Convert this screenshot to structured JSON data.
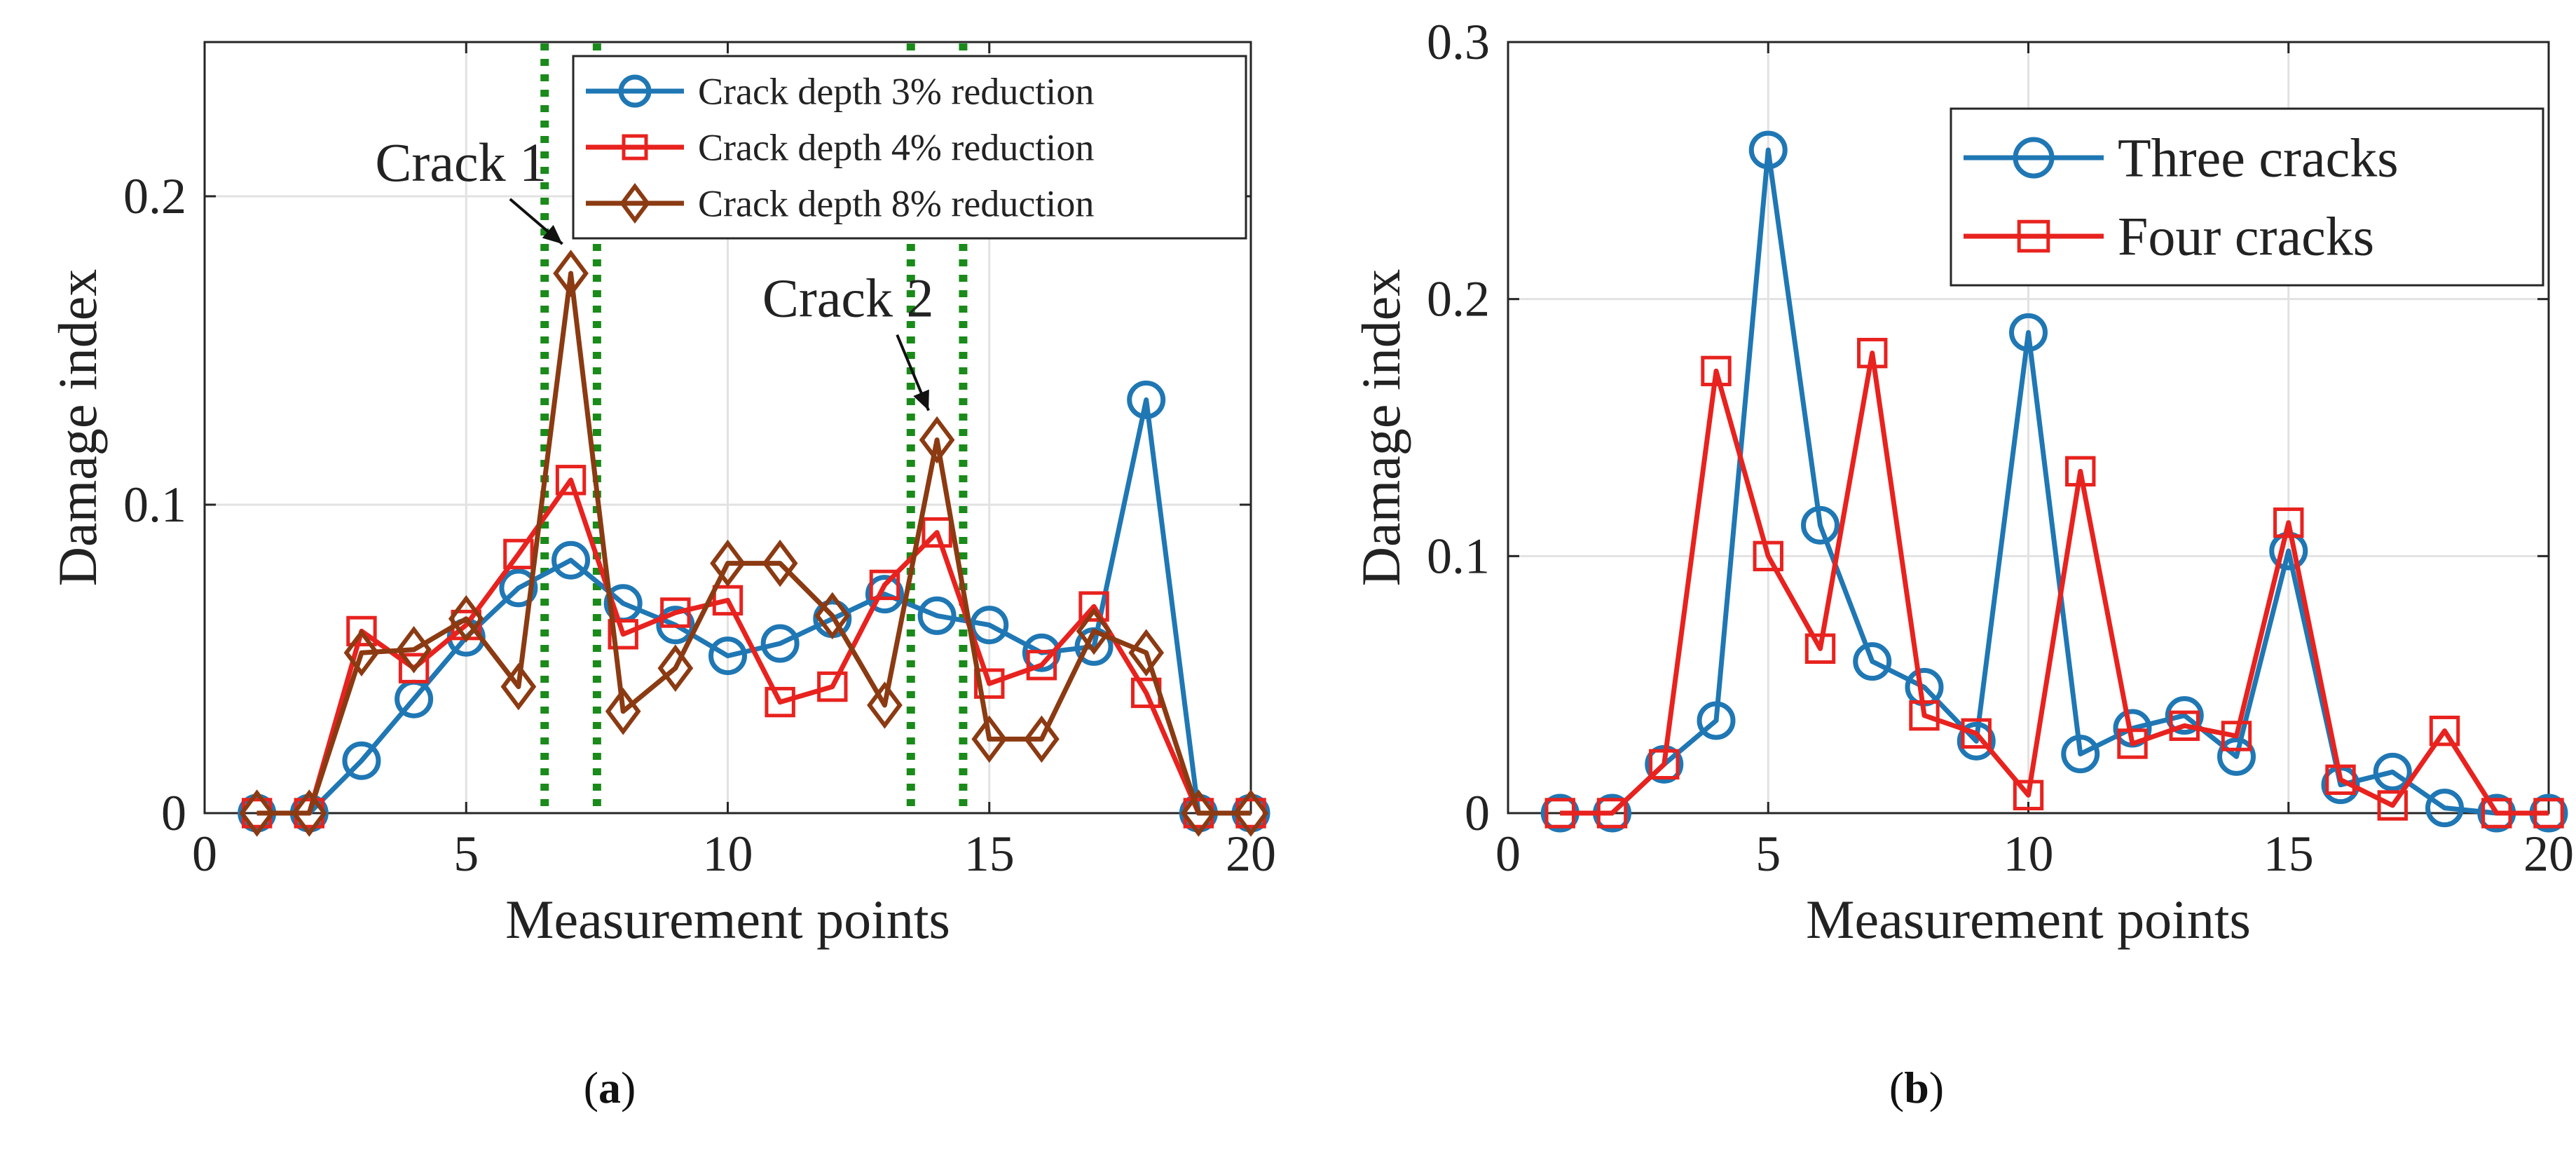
{
  "chart_data": [
    {
      "type": "line",
      "panel_label": "a",
      "xlabel": "Measurement points",
      "ylabel": "Damage index",
      "xlim": [
        0,
        20
      ],
      "ylim": [
        0,
        0.25
      ],
      "xticks": [
        0,
        5,
        10,
        15,
        20
      ],
      "yticks": [
        0,
        0.1,
        0.2
      ],
      "ytick_labels": [
        "0",
        "0.1",
        "0.2"
      ],
      "grid": true,
      "legend_position": "top-right",
      "x": [
        1,
        2,
        3,
        4,
        5,
        6,
        7,
        8,
        9,
        10,
        11,
        12,
        13,
        14,
        15,
        16,
        17,
        18,
        19,
        20
      ],
      "series": [
        {
          "name": "Crack depth 3% reduction",
          "color": "#1f77b4",
          "marker": "circle",
          "values": [
            0,
            0,
            0.017,
            0.037,
            0.057,
            0.073,
            0.082,
            0.068,
            0.061,
            0.051,
            0.055,
            0.063,
            0.071,
            0.064,
            0.061,
            0.052,
            0.054,
            0.134,
            0,
            0
          ]
        },
        {
          "name": "Crack depth 4% reduction",
          "color": "#e8221e",
          "marker": "square",
          "values": [
            0,
            0,
            0.059,
            0.047,
            0.061,
            0.084,
            0.108,
            0.058,
            0.065,
            0.069,
            0.036,
            0.041,
            0.074,
            0.091,
            0.042,
            0.048,
            0.067,
            0.039,
            0,
            0
          ]
        },
        {
          "name": "Crack depth 8% reduction",
          "color": "#8b3a12",
          "marker": "diamond",
          "values": [
            0,
            0,
            0.052,
            0.053,
            0.063,
            0.041,
            0.175,
            0.033,
            0.047,
            0.081,
            0.081,
            0.064,
            0.035,
            0.121,
            0.024,
            0.024,
            0.059,
            0.052,
            0,
            0
          ]
        }
      ],
      "vlines": [
        6.5,
        7.5,
        13.5,
        14.5
      ],
      "vline_color": "#1a8a1a",
      "annotations": [
        {
          "text": "Crack 1",
          "x": 7,
          "y": 0.175,
          "label_x": 4.9,
          "label_y": 0.205
        },
        {
          "text": "Crack 2",
          "x": 14,
          "y": 0.121,
          "label_x": 12.3,
          "label_y": 0.161
        }
      ]
    },
    {
      "type": "line",
      "panel_label": "b",
      "xlabel": "Measurement points",
      "ylabel": "Damage index",
      "xlim": [
        0,
        20
      ],
      "ylim": [
        0,
        0.3
      ],
      "xticks": [
        0,
        5,
        10,
        15,
        20
      ],
      "yticks": [
        0,
        0.1,
        0.2,
        0.3
      ],
      "ytick_labels": [
        "0",
        "0.1",
        "0.2",
        "0.3"
      ],
      "grid": true,
      "legend_position": "top-right",
      "x": [
        1,
        2,
        3,
        4,
        5,
        6,
        7,
        8,
        9,
        10,
        11,
        12,
        13,
        14,
        15,
        16,
        17,
        18,
        19,
        20
      ],
      "series": [
        {
          "name": "Three cracks",
          "color": "#1f77b4",
          "marker": "circle",
          "values": [
            0,
            0,
            0.019,
            0.036,
            0.258,
            0.112,
            0.059,
            0.049,
            0.028,
            0.187,
            0.023,
            0.033,
            0.038,
            0.022,
            0.102,
            0.011,
            0.016,
            0.002,
            0,
            0
          ]
        },
        {
          "name": "Four cracks",
          "color": "#e8221e",
          "marker": "square",
          "values": [
            0,
            0,
            0.019,
            0.172,
            0.1,
            0.064,
            0.179,
            0.038,
            0.031,
            0.007,
            0.133,
            0.027,
            0.034,
            0.03,
            0.113,
            0.013,
            0.003,
            0.032,
            0,
            0
          ]
        }
      ]
    }
  ]
}
